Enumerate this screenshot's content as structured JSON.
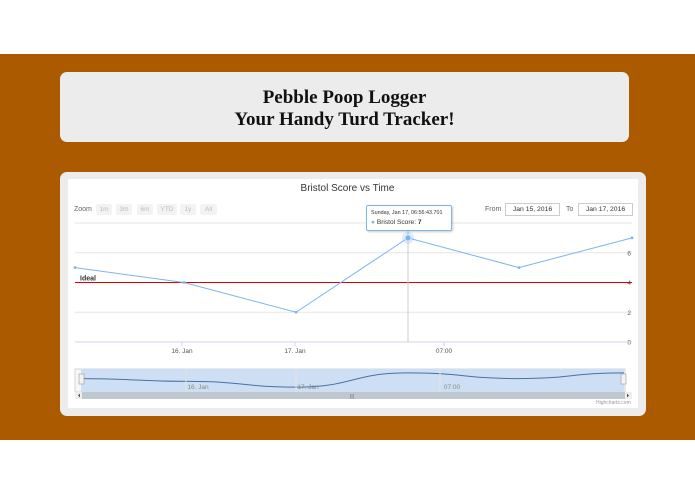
{
  "header": {
    "line1": "Pebble Poop Logger",
    "line2": "Your Handy Turd Tracker!"
  },
  "chart": {
    "title": "Bristol Score vs Time",
    "zoom_label": "Zoom",
    "zoom_buttons": [
      "1m",
      "3m",
      "6m",
      "YTD",
      "1y",
      "All"
    ],
    "from_label": "From",
    "from_value": "Jan 15, 2016",
    "to_label": "To",
    "to_value": "Jan 17, 2016",
    "credit": "Highcharts.com",
    "tooltip": {
      "date": "Sunday, Jan 17, 06:56:43.701",
      "series_label": "Bristol Score:",
      "value": "7"
    },
    "navigator_labels": [
      "16. Jan",
      "17. Jan",
      "07:00"
    ],
    "colors": {
      "series": "#7cb5ec",
      "ideal_line": "#e00000",
      "band": "#ab5a00",
      "card": "#ececec"
    }
  },
  "chart_data": {
    "type": "line",
    "title": "Bristol Score vs Time",
    "series": [
      {
        "name": "Bristol Score",
        "x": [
          "2016-01-15 ~22:00",
          "2016-01-16 ~08:00",
          "2016-01-16 ~21:00",
          "2016-01-17 06:56",
          "2016-01-17 ~09:00",
          "2016-01-17 ~11:00"
        ],
        "values": [
          5,
          4,
          2,
          7,
          5,
          7
        ]
      }
    ],
    "plot_lines": [
      {
        "label": "Ideal",
        "value": 4
      }
    ],
    "x_tick_labels": [
      "16. Jan",
      "17. Jan",
      "07:00"
    ],
    "y_tick_labels": [
      "0",
      "2",
      "4",
      "6"
    ],
    "ylim": [
      0,
      8
    ],
    "grid": true
  }
}
